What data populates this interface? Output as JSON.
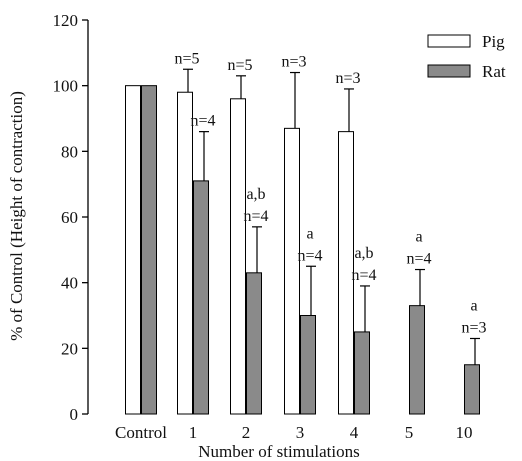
{
  "chart_data": {
    "type": "bar",
    "xlabel": "Number of stimulations",
    "ylabel": "% of Control (Height of contraction)",
    "ylim": [
      0,
      120
    ],
    "yticks": [
      0,
      20,
      40,
      60,
      80,
      100,
      120
    ],
    "categories": [
      "Control",
      "1",
      "2",
      "3",
      "4",
      "5",
      "10"
    ],
    "legend_position": "top-right",
    "series": [
      {
        "name": "Pig",
        "color": "#ffffff",
        "values": [
          100,
          98,
          96,
          87,
          86,
          null,
          null
        ],
        "errors": [
          null,
          7,
          7,
          17,
          13,
          null,
          null
        ],
        "annotations": [
          [],
          [
            "n=5"
          ],
          [
            "n=5"
          ],
          [
            "n=3"
          ],
          [
            "n=3"
          ],
          [],
          []
        ]
      },
      {
        "name": "Rat",
        "color": "#8a8a8a",
        "values": [
          100,
          71,
          43,
          30,
          25,
          33,
          15
        ],
        "errors": [
          null,
          15,
          14,
          15,
          14,
          11,
          8
        ],
        "annotations": [
          [],
          [
            "n=4"
          ],
          [
            "a,b",
            "n=4"
          ],
          [
            "a",
            "n=4"
          ],
          [
            "a,b",
            "n=4"
          ],
          [
            "a",
            "n=4"
          ],
          [
            "a",
            "n=3"
          ]
        ]
      }
    ]
  }
}
